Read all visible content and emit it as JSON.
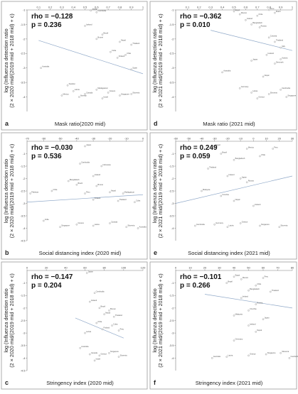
{
  "chart_data": [
    {
      "type": "scatter",
      "letter": "a",
      "xlabel": "Mask ratio(2020 mid)",
      "ylabel_lines": [
        "log (Influenza detection ratio",
        "(2 × 2020 mid/(2019 mid + 2018 mid) + c)"
      ],
      "rho": "rho = −0.128",
      "p": "p = 0.236",
      "xticks": [
        "0.1",
        "0.2",
        "0.3",
        "0.4",
        "0.5",
        "0.6",
        "0.7",
        "0.8",
        "0.9",
        "1"
      ],
      "yticks": [
        "-1",
        "-1.5",
        "-2",
        "-2.5",
        "-3",
        "-3.5",
        "-4"
      ],
      "xlim": [
        0,
        1
      ],
      "ylim": [
        -4.5,
        -1
      ],
      "trend": [
        [
          0.1,
          -2.05
        ],
        [
          1.0,
          -3.2
        ]
      ],
      "points": [
        {
          "x": 0.55,
          "y": -1.02,
          "label": "Japan"
        },
        {
          "x": 0.6,
          "y": -1.08,
          "label": "Cambodia"
        },
        {
          "x": 0.5,
          "y": -1.55,
          "label": "Iceland"
        },
        {
          "x": 0.65,
          "y": -1.85,
          "label": "Brazil"
        },
        {
          "x": 0.6,
          "y": -2.0,
          "label": "Brunei"
        },
        {
          "x": 0.8,
          "y": -2.1,
          "label": "Nepal"
        },
        {
          "x": 0.9,
          "y": -2.2,
          "label": "Thailand"
        },
        {
          "x": 0.72,
          "y": -2.45,
          "label": "Cuba"
        },
        {
          "x": 0.85,
          "y": -2.55,
          "label": "Chile"
        },
        {
          "x": 0.78,
          "y": -2.65,
          "label": "Finland"
        },
        {
          "x": 0.12,
          "y": -3.0,
          "label": "Australia"
        },
        {
          "x": 0.9,
          "y": -3.05,
          "label": "Spain"
        },
        {
          "x": 0.35,
          "y": -3.6,
          "label": "Sweden"
        },
        {
          "x": 0.4,
          "y": -3.8,
          "label": "Latvia"
        },
        {
          "x": 0.5,
          "y": -3.9,
          "label": "Canada"
        },
        {
          "x": 0.6,
          "y": -3.75,
          "label": "Madagascar"
        },
        {
          "x": 0.7,
          "y": -3.85,
          "label": "Greece"
        },
        {
          "x": 0.8,
          "y": -3.95,
          "label": "Singapore"
        },
        {
          "x": 0.65,
          "y": -4.05,
          "label": "Israel"
        },
        {
          "x": 0.9,
          "y": -3.9,
          "label": "Slovenia"
        },
        {
          "x": 0.3,
          "y": -3.95,
          "label": "Mexico"
        },
        {
          "x": 0.45,
          "y": -4.0,
          "label": "Norway"
        }
      ]
    },
    {
      "type": "scatter",
      "letter": "d",
      "xlabel": "Mask ratio (2021 mid)",
      "ylabel_lines": [
        "log (Influenza detection ratio",
        "(2 × 2021 mid/(2019 mid + 2018 mid) + c)"
      ],
      "rho": "rho = −0.362",
      "p": "p = 0.010",
      "xticks": [
        "0.1",
        "0.2",
        "0.3",
        "0.4",
        "0.5",
        "0.6",
        "0.7",
        "0.8",
        "0.9",
        "1"
      ],
      "yticks": [
        "-1",
        "-1.5",
        "-2",
        "-2.5",
        "-3",
        "-3.5",
        "-4"
      ],
      "xlim": [
        0,
        1
      ],
      "ylim": [
        -4.5,
        -1
      ],
      "trend": [
        [
          0.3,
          -1.7
        ],
        [
          1.0,
          -2.4
        ]
      ],
      "points": [
        {
          "x": 0.5,
          "y": -1.05,
          "label": "Egypt"
        },
        {
          "x": 0.55,
          "y": -1.15,
          "label": "Mexico"
        },
        {
          "x": 0.8,
          "y": -1.0,
          "label": "Peru"
        },
        {
          "x": 0.7,
          "y": -1.2,
          "label": "Chile"
        },
        {
          "x": 0.85,
          "y": -1.1,
          "label": "Brazil"
        },
        {
          "x": 0.6,
          "y": -1.35,
          "label": "Ireland"
        },
        {
          "x": 0.65,
          "y": -1.5,
          "label": "Bangladesh"
        },
        {
          "x": 0.72,
          "y": -1.6,
          "label": "Russia"
        },
        {
          "x": 0.8,
          "y": -1.95,
          "label": "Czechia"
        },
        {
          "x": 0.85,
          "y": -2.1,
          "label": "Thailand"
        },
        {
          "x": 0.9,
          "y": -2.3,
          "label": "Italy"
        },
        {
          "x": 0.78,
          "y": -2.55,
          "label": "Iceland"
        },
        {
          "x": 0.65,
          "y": -2.75,
          "label": "Japan"
        },
        {
          "x": 0.9,
          "y": -2.7,
          "label": "Austria"
        },
        {
          "x": 0.85,
          "y": -2.85,
          "label": "Denmark"
        },
        {
          "x": 0.4,
          "y": -3.15,
          "label": "Australia"
        },
        {
          "x": 0.75,
          "y": -3.3,
          "label": "Nepal"
        },
        {
          "x": 0.55,
          "y": -3.7,
          "label": "Germany"
        },
        {
          "x": 0.65,
          "y": -3.85,
          "label": "Latvia"
        },
        {
          "x": 0.8,
          "y": -3.9,
          "label": "Slovenia"
        },
        {
          "x": 0.9,
          "y": -3.75,
          "label": "Cambodia"
        },
        {
          "x": 0.95,
          "y": -4.0,
          "label": "Singapore"
        },
        {
          "x": 0.7,
          "y": -4.05,
          "label": "Greece"
        }
      ]
    },
    {
      "type": "scatter",
      "letter": "b",
      "xlabel": "Social distancing index (2020 mid)",
      "ylabel_lines": [
        "log (Influenza detection ratio",
        "(2 × 2020 mid/(2019 mid + 2018 mid) + c)"
      ],
      "rho": "rho = −0.030",
      "p": "p = 0.536",
      "xticks": [
        "-70",
        "-60",
        "-50",
        "-40",
        "-30",
        "-20",
        "-10",
        "0"
      ],
      "yticks": [
        "-1",
        "-1.5",
        "-2",
        "-2.5",
        "-3",
        "-3.5",
        "-4",
        "-4.5"
      ],
      "xlim": [
        -70,
        0
      ],
      "ylim": [
        -4.5,
        -0.5
      ],
      "trend": [
        [
          -70,
          -2.95
        ],
        [
          0,
          -2.65
        ]
      ],
      "points": [
        {
          "x": -35,
          "y": -0.7,
          "label": "Japan"
        },
        {
          "x": -38,
          "y": -1.4,
          "label": "Cambodia"
        },
        {
          "x": -25,
          "y": -1.5,
          "label": "Indonesia"
        },
        {
          "x": -30,
          "y": -1.9,
          "label": "Iceland"
        },
        {
          "x": -45,
          "y": -2.1,
          "label": "Bangladesh"
        },
        {
          "x": -40,
          "y": -2.25,
          "label": "Brazil"
        },
        {
          "x": -28,
          "y": -2.3,
          "label": "Brunei"
        },
        {
          "x": -55,
          "y": -2.5,
          "label": "Chile"
        },
        {
          "x": -68,
          "y": -2.6,
          "label": "Pakistan"
        },
        {
          "x": -35,
          "y": -2.6,
          "label": "Peru"
        },
        {
          "x": -20,
          "y": -2.55,
          "label": "Nepal"
        },
        {
          "x": -12,
          "y": -2.6,
          "label": "Madagascar"
        },
        {
          "x": -30,
          "y": -2.85,
          "label": "Finland"
        },
        {
          "x": -15,
          "y": -2.9,
          "label": "Thailand"
        },
        {
          "x": -5,
          "y": -2.95,
          "label": "Cuba"
        },
        {
          "x": -60,
          "y": -3.7,
          "label": "India"
        },
        {
          "x": -50,
          "y": -3.95,
          "label": "Singapore"
        },
        {
          "x": -40,
          "y": -3.85,
          "label": "Greece"
        },
        {
          "x": -30,
          "y": -3.9,
          "label": "Latvia"
        },
        {
          "x": -20,
          "y": -3.8,
          "label": "Canada"
        },
        {
          "x": -10,
          "y": -3.95,
          "label": "Slovenia"
        },
        {
          "x": -3,
          "y": -4.0,
          "label": "Australia"
        }
      ]
    },
    {
      "type": "scatter",
      "letter": "e",
      "xlabel": "Social distancing index (2021 mid)",
      "ylabel_lines": [
        "log (Influenza detection ratio",
        "(2 × 2021 mid/(2019 mid + 2018 mid) + c)"
      ],
      "rho": "rho = 0.249",
      "p": "p = 0.059",
      "xticks": [
        "-60",
        "-50",
        "-40",
        "-30",
        "-20",
        "-10",
        "0",
        "10",
        "20",
        "30"
      ],
      "yticks": [
        "-1",
        "-1.5",
        "-2",
        "-2.5",
        "-3",
        "-3.5",
        "-4"
      ],
      "xlim": [
        -60,
        30
      ],
      "ylim": [
        -4.5,
        -0.5
      ],
      "trend": [
        [
          -60,
          -3.0
        ],
        [
          30,
          -1.9
        ]
      ],
      "points": [
        {
          "x": -30,
          "y": -0.7,
          "label": "Egypt"
        },
        {
          "x": -5,
          "y": -0.8,
          "label": "Mexico"
        },
        {
          "x": 15,
          "y": -0.8,
          "label": "Peru"
        },
        {
          "x": -25,
          "y": -1.0,
          "label": "Brazil"
        },
        {
          "x": 5,
          "y": -1.1,
          "label": "Chile"
        },
        {
          "x": -15,
          "y": -1.25,
          "label": "Bangladesh"
        },
        {
          "x": -35,
          "y": -1.6,
          "label": "Thailand"
        },
        {
          "x": -20,
          "y": -1.9,
          "label": "Ireland"
        },
        {
          "x": -10,
          "y": -2.0,
          "label": "Japan"
        },
        {
          "x": -5,
          "y": -2.15,
          "label": "Russia"
        },
        {
          "x": -40,
          "y": -2.5,
          "label": "Malaysia"
        },
        {
          "x": -25,
          "y": -2.7,
          "label": "Czechia"
        },
        {
          "x": -15,
          "y": -2.9,
          "label": "Nepal"
        },
        {
          "x": 0,
          "y": -3.1,
          "label": "Iceland"
        },
        {
          "x": -45,
          "y": -3.9,
          "label": "Cambodia"
        },
        {
          "x": -30,
          "y": -3.85,
          "label": "Germany"
        },
        {
          "x": -20,
          "y": -3.95,
          "label": "Latvia"
        },
        {
          "x": -10,
          "y": -3.8,
          "label": "Greece"
        },
        {
          "x": 5,
          "y": -3.9,
          "label": "Singapore"
        },
        {
          "x": 20,
          "y": -3.95,
          "label": "Slovenia"
        }
      ]
    },
    {
      "type": "scatter",
      "letter": "c",
      "xlabel": "Stringency index (2020 mid)",
      "ylabel_lines": [
        "log (Influenza detection ratio",
        "(2 × 2020 mid/(2019 mid + 2018 mid) + c)"
      ],
      "rho": "rho = −0.147",
      "p": "p = 0.204",
      "xticks": [
        "0",
        "20",
        "40",
        "60",
        "80",
        "100",
        "120"
      ],
      "yticks": [
        "-1",
        "-1.5",
        "-2",
        "-2.5",
        "-3",
        "-3.5",
        "-4",
        "-4.5"
      ],
      "xlim": [
        0,
        120
      ],
      "ylim": [
        -4.5,
        -0.5
      ],
      "trend": [
        [
          50,
          -2.4
        ],
        [
          100,
          -3.2
        ]
      ],
      "points": [
        {
          "x": 62,
          "y": -0.6,
          "label": "Japan"
        },
        {
          "x": 70,
          "y": -1.4,
          "label": "Cambodia"
        },
        {
          "x": 65,
          "y": -1.75,
          "label": "Iceland"
        },
        {
          "x": 75,
          "y": -2.0,
          "label": "Brazil"
        },
        {
          "x": 85,
          "y": -2.1,
          "label": "Brunei"
        },
        {
          "x": 80,
          "y": -2.25,
          "label": "Nepal"
        },
        {
          "x": 90,
          "y": -2.35,
          "label": "Thailand"
        },
        {
          "x": 72,
          "y": -2.6,
          "label": "Chile"
        },
        {
          "x": 88,
          "y": -2.7,
          "label": "Cuba"
        },
        {
          "x": 78,
          "y": -2.85,
          "label": "Finland"
        },
        {
          "x": 95,
          "y": -2.9,
          "label": "Peru"
        },
        {
          "x": 60,
          "y": -3.0,
          "label": "Latvia"
        },
        {
          "x": 55,
          "y": -3.6,
          "label": "Australia"
        },
        {
          "x": 65,
          "y": -3.85,
          "label": "Canada"
        },
        {
          "x": 75,
          "y": -3.9,
          "label": "Greece"
        },
        {
          "x": 85,
          "y": -3.8,
          "label": "Singapore"
        },
        {
          "x": 95,
          "y": -3.95,
          "label": "Slovenia"
        },
        {
          "x": 70,
          "y": -4.1,
          "label": "Israel"
        }
      ]
    },
    {
      "type": "scatter",
      "letter": "f",
      "xlabel": "Stringency index (2021 mid)",
      "ylabel_lines": [
        "log (Influenza detection ratio",
        "(2 × 2021 mid/(2019 mid + 2018 mid) + c)"
      ],
      "rho": "rho = −0.101",
      "p": "p = 0.266",
      "xticks": [
        "0",
        "10",
        "20",
        "30",
        "40",
        "50",
        "60",
        "70",
        "80"
      ],
      "yticks": [
        "-1",
        "-1.5",
        "-2",
        "-2.5",
        "-3",
        "-3.5",
        "-4"
      ],
      "xlim": [
        0,
        80
      ],
      "ylim": [
        -4.5,
        -0.5
      ],
      "trend": [
        [
          20,
          -1.45
        ],
        [
          80,
          -2.0
        ]
      ],
      "points": [
        {
          "x": 40,
          "y": -0.75,
          "label": "Egypt"
        },
        {
          "x": 45,
          "y": -0.85,
          "label": "Mexico"
        },
        {
          "x": 60,
          "y": -0.8,
          "label": "Peru"
        },
        {
          "x": 35,
          "y": -1.0,
          "label": "Brazil"
        },
        {
          "x": 55,
          "y": -1.1,
          "label": "Chile"
        },
        {
          "x": 50,
          "y": -1.3,
          "label": "Bangladesh"
        },
        {
          "x": 65,
          "y": -1.35,
          "label": "Thailand"
        },
        {
          "x": 45,
          "y": -1.6,
          "label": "Ireland"
        },
        {
          "x": 55,
          "y": -1.85,
          "label": "Russia"
        },
        {
          "x": 50,
          "y": -2.1,
          "label": "Czechia"
        },
        {
          "x": 40,
          "y": -2.3,
          "label": "Malaysia"
        },
        {
          "x": 60,
          "y": -2.45,
          "label": "Japan"
        },
        {
          "x": 50,
          "y": -2.7,
          "label": "Iceland"
        },
        {
          "x": 55,
          "y": -2.95,
          "label": "Nepal"
        },
        {
          "x": 40,
          "y": -3.3,
          "label": "Germany"
        },
        {
          "x": 35,
          "y": -3.95,
          "label": "Latvia"
        },
        {
          "x": 50,
          "y": -3.9,
          "label": "Greece"
        },
        {
          "x": 62,
          "y": -3.85,
          "label": "Singapore"
        },
        {
          "x": 72,
          "y": -3.8,
          "label": "Slovenia"
        },
        {
          "x": 78,
          "y": -4.0,
          "label": "Cambodia"
        },
        {
          "x": 25,
          "y": -4.0,
          "label": "Australia"
        }
      ]
    }
  ]
}
